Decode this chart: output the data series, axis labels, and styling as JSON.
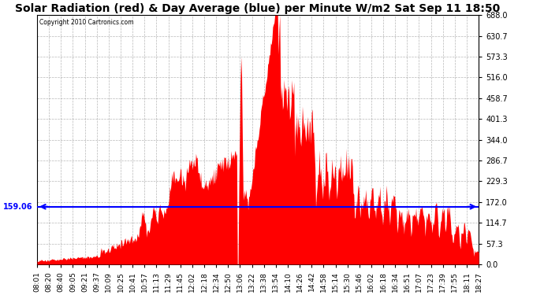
{
  "title": "Solar Radiation (red) & Day Average (blue) per Minute W/m2 Sat Sep 11 18:50",
  "copyright": "Copyright 2010 Cartronics.com",
  "y_max": 688.0,
  "y_min": 0.0,
  "y_ticks": [
    0.0,
    57.3,
    114.7,
    172.0,
    229.3,
    286.7,
    344.0,
    401.3,
    458.7,
    516.0,
    573.3,
    630.7,
    688.0
  ],
  "avg_value": 159.06,
  "avg_color": "blue",
  "fill_color": "red",
  "bg_color": "#ffffff",
  "grid_color": "#888888",
  "title_fontsize": 10,
  "x_labels": [
    "08:01",
    "08:20",
    "08:40",
    "09:05",
    "09:21",
    "09:37",
    "10:09",
    "10:25",
    "10:41",
    "10:57",
    "11:13",
    "11:29",
    "11:45",
    "12:02",
    "12:18",
    "12:34",
    "12:50",
    "13:06",
    "13:22",
    "13:38",
    "13:54",
    "14:10",
    "14:26",
    "14:42",
    "14:58",
    "15:14",
    "15:30",
    "15:46",
    "16:02",
    "16:18",
    "16:34",
    "16:51",
    "17:07",
    "17:23",
    "17:39",
    "17:55",
    "18:11",
    "18:27"
  ]
}
